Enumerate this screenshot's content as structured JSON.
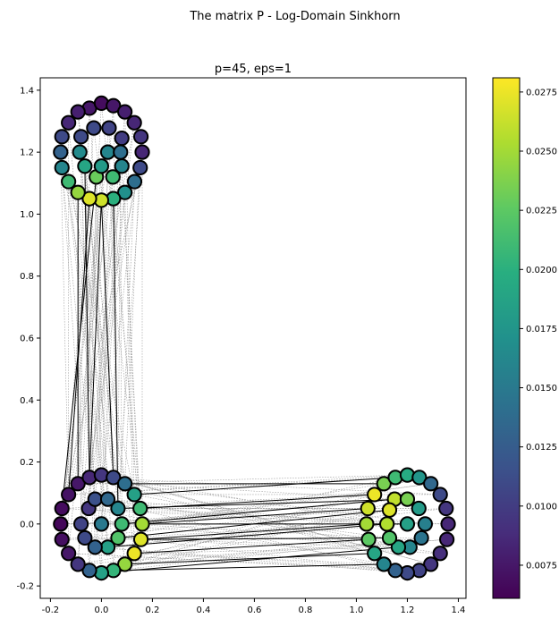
{
  "chart_data": {
    "type": "scatter",
    "suptitle": "The matrix P - Log-Domain Sinkhorn",
    "title": "p=45, eps=1",
    "xlabel": "",
    "ylabel": "",
    "xlim": [
      -0.24,
      1.43
    ],
    "ylim": [
      -0.24,
      1.44
    ],
    "xticks": [
      -0.2,
      0.0,
      0.2,
      0.4,
      0.6,
      0.8,
      1.0,
      1.2,
      1.4
    ],
    "xtick_labels": [
      "-0.2",
      "0.0",
      "0.2",
      "0.4",
      "0.6",
      "0.8",
      "1.0",
      "1.2",
      "1.4"
    ],
    "yticks": [
      -0.2,
      0.0,
      0.2,
      0.4,
      0.6,
      0.8,
      1.0,
      1.2,
      1.4
    ],
    "ytick_labels": [
      "-0.2",
      "0.0",
      "0.2",
      "0.4",
      "0.6",
      "0.8",
      "1.0",
      "1.2",
      "1.4"
    ],
    "grid": false,
    "colormap": "viridis",
    "colorbar": {
      "range": [
        0.0061,
        0.0281
      ],
      "ticks": [
        0.0075,
        0.01,
        0.0125,
        0.015,
        0.0175,
        0.02,
        0.0225,
        0.025,
        0.0275
      ],
      "tick_labels": [
        "0.0075",
        "0.0100",
        "0.0125",
        "0.0150",
        "0.0175",
        "0.0200",
        "0.0225",
        "0.0250",
        "0.0275"
      ]
    },
    "point_clouds": [
      {
        "center": [
          0.0,
          1.2
        ],
        "points": [
          [
            -0.047,
            1.342,
            0.0075
          ],
          [
            0.0,
            1.358,
            0.0068
          ],
          [
            0.047,
            1.35,
            0.0075
          ],
          [
            0.092,
            1.33,
            0.008
          ],
          [
            0.129,
            1.295,
            0.0085
          ],
          [
            0.155,
            1.25,
            0.0095
          ],
          [
            0.16,
            1.2,
            0.0085
          ],
          [
            0.152,
            1.15,
            0.011
          ],
          [
            0.13,
            1.105,
            0.014
          ],
          [
            0.092,
            1.07,
            0.017
          ],
          [
            0.047,
            1.05,
            0.02
          ],
          [
            0.0,
            1.045,
            0.0265
          ],
          [
            -0.047,
            1.05,
            0.027
          ],
          [
            -0.092,
            1.07,
            0.0245
          ],
          [
            -0.129,
            1.105,
            0.021
          ],
          [
            -0.155,
            1.15,
            0.016
          ],
          [
            -0.16,
            1.2,
            0.013
          ],
          [
            -0.155,
            1.25,
            0.011
          ],
          [
            -0.129,
            1.295,
            0.0085
          ],
          [
            -0.092,
            1.33,
            0.008
          ],
          [
            -0.03,
            1.278,
            0.011
          ],
          [
            0.03,
            1.278,
            0.0105
          ],
          [
            0.08,
            1.245,
            0.01
          ],
          [
            0.08,
            1.155,
            0.016
          ],
          [
            0.045,
            1.12,
            0.021
          ],
          [
            -0.02,
            1.12,
            0.023
          ],
          [
            -0.065,
            1.155,
            0.019
          ],
          [
            -0.085,
            1.2,
            0.0165
          ],
          [
            -0.08,
            1.25,
            0.011
          ],
          [
            0.025,
            1.2,
            0.016
          ],
          [
            0.075,
            1.2,
            0.014
          ],
          [
            0.0,
            1.155,
            0.018
          ]
        ]
      },
      {
        "center": [
          0.0,
          0.0
        ],
        "points": [
          [
            -0.092,
            0.13,
            0.0075
          ],
          [
            -0.047,
            0.15,
            0.0085
          ],
          [
            0.0,
            0.158,
            0.0095
          ],
          [
            0.047,
            0.15,
            0.011
          ],
          [
            0.092,
            0.13,
            0.014
          ],
          [
            0.129,
            0.095,
            0.0185
          ],
          [
            0.152,
            0.05,
            0.021
          ],
          [
            0.16,
            0.0,
            0.025
          ],
          [
            0.155,
            -0.05,
            0.027
          ],
          [
            0.129,
            -0.095,
            0.0275
          ],
          [
            0.092,
            -0.13,
            0.0245
          ],
          [
            0.047,
            -0.15,
            0.0205
          ],
          [
            0.0,
            -0.158,
            0.0185
          ],
          [
            -0.047,
            -0.15,
            0.013
          ],
          [
            -0.092,
            -0.13,
            0.0095
          ],
          [
            -0.129,
            -0.095,
            0.0075
          ],
          [
            -0.155,
            -0.05,
            0.007
          ],
          [
            -0.16,
            0.0,
            0.0065
          ],
          [
            -0.155,
            0.05,
            0.0068
          ],
          [
            -0.129,
            0.095,
            0.0072
          ],
          [
            -0.05,
            0.05,
            0.0095
          ],
          [
            -0.025,
            0.08,
            0.0115
          ],
          [
            0.025,
            0.08,
            0.0135
          ],
          [
            0.065,
            0.05,
            0.016
          ],
          [
            0.08,
            0.0,
            0.021
          ],
          [
            0.065,
            -0.045,
            0.022
          ],
          [
            0.025,
            -0.075,
            0.0185
          ],
          [
            -0.025,
            -0.075,
            0.013
          ],
          [
            -0.065,
            -0.045,
            0.011
          ],
          [
            -0.08,
            0.0,
            0.0105
          ],
          [
            0.0,
            0.0,
            0.015
          ]
        ]
      },
      {
        "center": [
          1.2,
          0.0
        ],
        "points": [
          [
            1.108,
            0.13,
            0.0235
          ],
          [
            1.153,
            0.15,
            0.021
          ],
          [
            1.2,
            0.158,
            0.0195
          ],
          [
            1.247,
            0.15,
            0.0175
          ],
          [
            1.292,
            0.13,
            0.0135
          ],
          [
            1.329,
            0.095,
            0.011
          ],
          [
            1.352,
            0.05,
            0.0095
          ],
          [
            1.36,
            0.0,
            0.0085
          ],
          [
            1.355,
            -0.05,
            0.0085
          ],
          [
            1.329,
            -0.095,
            0.009
          ],
          [
            1.292,
            -0.13,
            0.0095
          ],
          [
            1.247,
            -0.15,
            0.0105
          ],
          [
            1.2,
            -0.158,
            0.011
          ],
          [
            1.153,
            -0.15,
            0.013
          ],
          [
            1.108,
            -0.13,
            0.016
          ],
          [
            1.071,
            -0.095,
            0.019
          ],
          [
            1.048,
            -0.05,
            0.0225
          ],
          [
            1.04,
            0.0,
            0.025
          ],
          [
            1.045,
            0.05,
            0.0265
          ],
          [
            1.071,
            0.095,
            0.0275
          ],
          [
            1.15,
            0.08,
            0.026
          ],
          [
            1.2,
            0.08,
            0.0235
          ],
          [
            1.245,
            0.05,
            0.018
          ],
          [
            1.27,
            0.0,
            0.0155
          ],
          [
            1.255,
            -0.045,
            0.0145
          ],
          [
            1.21,
            -0.075,
            0.016
          ],
          [
            1.165,
            -0.075,
            0.019
          ],
          [
            1.13,
            -0.045,
            0.022
          ],
          [
            1.12,
            0.0,
            0.0255
          ],
          [
            1.13,
            0.045,
            0.027
          ],
          [
            1.2,
            0.0,
            0.0185
          ]
        ]
      }
    ],
    "strong_links": [
      [
        [
          -0.092,
          1.07
        ],
        [
          -0.092,
          0.13
        ]
      ],
      [
        [
          -0.047,
          1.05
        ],
        [
          -0.129,
          0.095
        ]
      ],
      [
        [
          0.0,
          1.045
        ],
        [
          0.047,
          0.15
        ]
      ],
      [
        [
          0.047,
          1.05
        ],
        [
          0.065,
          0.05
        ]
      ],
      [
        [
          -0.065,
          1.155
        ],
        [
          -0.047,
          0.15
        ]
      ],
      [
        [
          -0.02,
          1.12
        ],
        [
          -0.155,
          0.05
        ]
      ],
      [
        [
          0.0,
          1.045
        ],
        [
          -0.047,
          0.15
        ]
      ],
      [
        [
          0.092,
          0.13
        ],
        [
          1.108,
          0.13
        ]
      ],
      [
        [
          0.152,
          0.05
        ],
        [
          1.071,
          0.095
        ]
      ],
      [
        [
          0.16,
          0.0
        ],
        [
          1.045,
          0.05
        ]
      ],
      [
        [
          0.155,
          -0.05
        ],
        [
          1.04,
          0.0
        ]
      ],
      [
        [
          0.129,
          -0.095
        ],
        [
          1.048,
          -0.05
        ]
      ],
      [
        [
          0.092,
          -0.13
        ],
        [
          1.071,
          -0.095
        ]
      ],
      [
        [
          0.047,
          -0.15
        ],
        [
          1.108,
          -0.13
        ]
      ],
      [
        [
          0.08,
          0.0
        ],
        [
          1.15,
          0.08
        ]
      ],
      [
        [
          0.065,
          -0.045
        ],
        [
          1.13,
          0.045
        ]
      ],
      [
        [
          0.025,
          -0.075
        ],
        [
          1.12,
          0.0
        ]
      ],
      [
        [
          0.065,
          0.05
        ],
        [
          1.2,
          0.08
        ]
      ],
      [
        [
          0.129,
          0.095
        ],
        [
          1.153,
          0.15
        ]
      ],
      [
        [
          0.0,
          -0.158
        ],
        [
          1.165,
          -0.075
        ]
      ],
      [
        [
          0.155,
          -0.05
        ],
        [
          1.13,
          -0.045
        ]
      ],
      [
        [
          0.16,
          0.0
        ],
        [
          1.2,
          0.0
        ]
      ]
    ]
  }
}
